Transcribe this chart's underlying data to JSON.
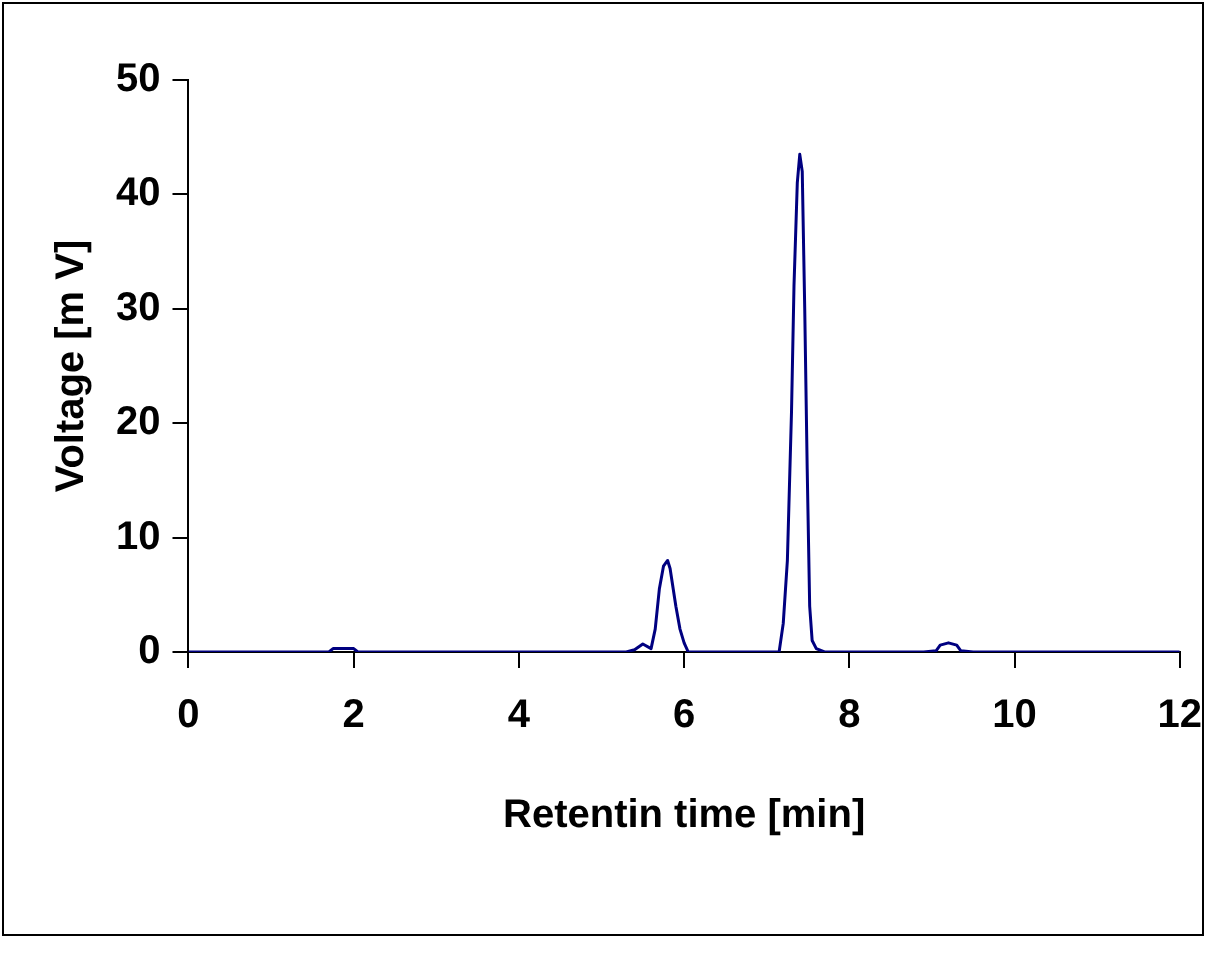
{
  "chart_data": {
    "type": "line",
    "xlabel": "Retentin time [min]",
    "ylabel": "Voltage [m V]",
    "series": [
      {
        "color": "#000080",
        "x": [
          0,
          1.0,
          1.7,
          1.75,
          1.8,
          1.95,
          2.0,
          2.05,
          3.0,
          4.0,
          5.3,
          5.4,
          5.5,
          5.6,
          5.65,
          5.7,
          5.75,
          5.8,
          5.83,
          5.9,
          5.95,
          6.0,
          6.05,
          6.5,
          7.0,
          7.15,
          7.2,
          7.25,
          7.3,
          7.33,
          7.37,
          7.4,
          7.43,
          7.46,
          7.49,
          7.52,
          7.55,
          7.6,
          7.7,
          7.8,
          8.5,
          8.9,
          9.05,
          9.1,
          9.2,
          9.3,
          9.35,
          9.5,
          12
        ],
        "values": [
          0,
          0,
          0,
          0.3,
          0.3,
          0.3,
          0.3,
          0,
          0,
          0,
          0,
          0.2,
          0.7,
          0.3,
          2,
          5.5,
          7.5,
          8,
          7.3,
          4,
          2,
          0.8,
          0,
          0,
          0,
          0,
          2.5,
          8,
          21,
          32,
          41,
          43.5,
          42,
          30,
          16,
          4,
          1,
          0.3,
          0,
          0,
          0,
          0,
          0.1,
          0.6,
          0.8,
          0.6,
          0.1,
          0,
          0
        ]
      }
    ],
    "xlim": [
      0,
      12
    ],
    "xticks": [
      0,
      2,
      4,
      6,
      8,
      10,
      12
    ],
    "ylim": [
      0,
      50
    ],
    "yticks": [
      0,
      10,
      20,
      30,
      40,
      50
    ],
    "grid": false,
    "legend": false,
    "marker": "none",
    "line_style": "solid"
  }
}
